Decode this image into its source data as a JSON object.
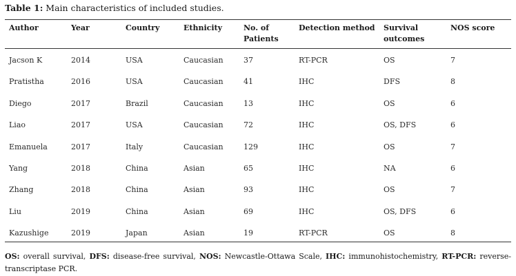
{
  "caption": {
    "label": "Table 1:",
    "text": "Main characteristics of included studies."
  },
  "table": {
    "headers": {
      "author": "Author",
      "year": "Year",
      "country": "Country",
      "ethnicity": "Ethnicity",
      "patients": "No. of Patients",
      "detection": "Detection method",
      "survival": "Survival outcomes",
      "nos": "NOS score"
    },
    "rows": [
      {
        "author": "Jacson K",
        "year": "2014",
        "country": "USA",
        "ethnicity": "Caucasian",
        "patients": "37",
        "detection": "RT-PCR",
        "survival": "OS",
        "nos": "7"
      },
      {
        "author": "Pratistha",
        "year": "2016",
        "country": "USA",
        "ethnicity": "Caucasian",
        "patients": "41",
        "detection": "IHC",
        "survival": "DFS",
        "nos": "8"
      },
      {
        "author": "Diego",
        "year": "2017",
        "country": "Brazil",
        "ethnicity": "Caucasian",
        "patients": "13",
        "detection": "IHC",
        "survival": "OS",
        "nos": "6"
      },
      {
        "author": "Liao",
        "year": "2017",
        "country": "USA",
        "ethnicity": "Caucasian",
        "patients": "72",
        "detection": "IHC",
        "survival": "OS, DFS",
        "nos": "6"
      },
      {
        "author": "Emanuela",
        "year": "2017",
        "country": "Italy",
        "ethnicity": "Caucasian",
        "patients": "129",
        "detection": "IHC",
        "survival": "OS",
        "nos": "7"
      },
      {
        "author": "Yang",
        "year": "2018",
        "country": "China",
        "ethnicity": "Asian",
        "patients": "65",
        "detection": "IHC",
        "survival": "NA",
        "nos": "6"
      },
      {
        "author": "Zhang",
        "year": "2018",
        "country": "China",
        "ethnicity": "Asian",
        "patients": "93",
        "detection": "IHC",
        "survival": "OS",
        "nos": "7"
      },
      {
        "author": "Liu",
        "year": "2019",
        "country": "China",
        "ethnicity": "Asian",
        "patients": "69",
        "detection": "IHC",
        "survival": "OS, DFS",
        "nos": "6"
      },
      {
        "author": "Kazushige",
        "year": "2019",
        "country": "Japan",
        "ethnicity": "Asian",
        "patients": "19",
        "detection": "RT-PCR",
        "survival": "OS",
        "nos": "8"
      }
    ]
  },
  "footnote": {
    "items": [
      {
        "abbr": "OS:",
        "text": " overall survival, "
      },
      {
        "abbr": "DFS:",
        "text": " disease-free survival, "
      },
      {
        "abbr": "NOS:",
        "text": " Newcastle-Ottawa Scale, "
      },
      {
        "abbr": "IHC:",
        "text": " immunohistochemistry, "
      },
      {
        "abbr": "RT-PCR:",
        "text": " reverse-transcriptase PCR."
      }
    ]
  }
}
